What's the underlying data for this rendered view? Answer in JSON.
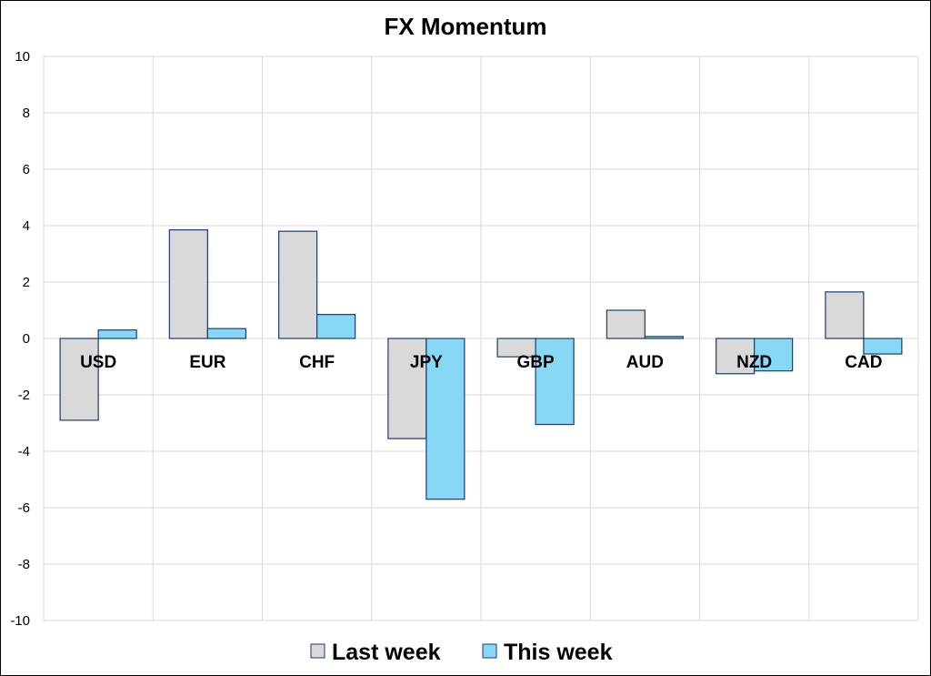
{
  "chart_data": {
    "type": "bar",
    "title": "FX Momentum",
    "xlabel": "",
    "ylabel": "",
    "categories": [
      "USD",
      "EUR",
      "CHF",
      "JPY",
      "GBP",
      "AUD",
      "NZD",
      "CAD"
    ],
    "series": [
      {
        "name": "Last week",
        "color": "#d9d9d9",
        "values": [
          -2.9,
          3.85,
          3.8,
          -3.55,
          -0.65,
          1.0,
          -1.25,
          1.65
        ]
      },
      {
        "name": "This week",
        "color": "#87d8f5",
        "values": [
          0.3,
          0.35,
          0.85,
          -5.7,
          -3.05,
          0.07,
          -1.15,
          -0.55
        ]
      }
    ],
    "ylim": [
      -10,
      10
    ],
    "yticks": [
      "10",
      "8",
      "6",
      "4",
      "2",
      "0",
      "-2",
      "-4",
      "-6",
      "-8",
      "-10"
    ],
    "grid": true,
    "legend_position": "bottom",
    "bar_outline_color": "#1f3a6e"
  }
}
